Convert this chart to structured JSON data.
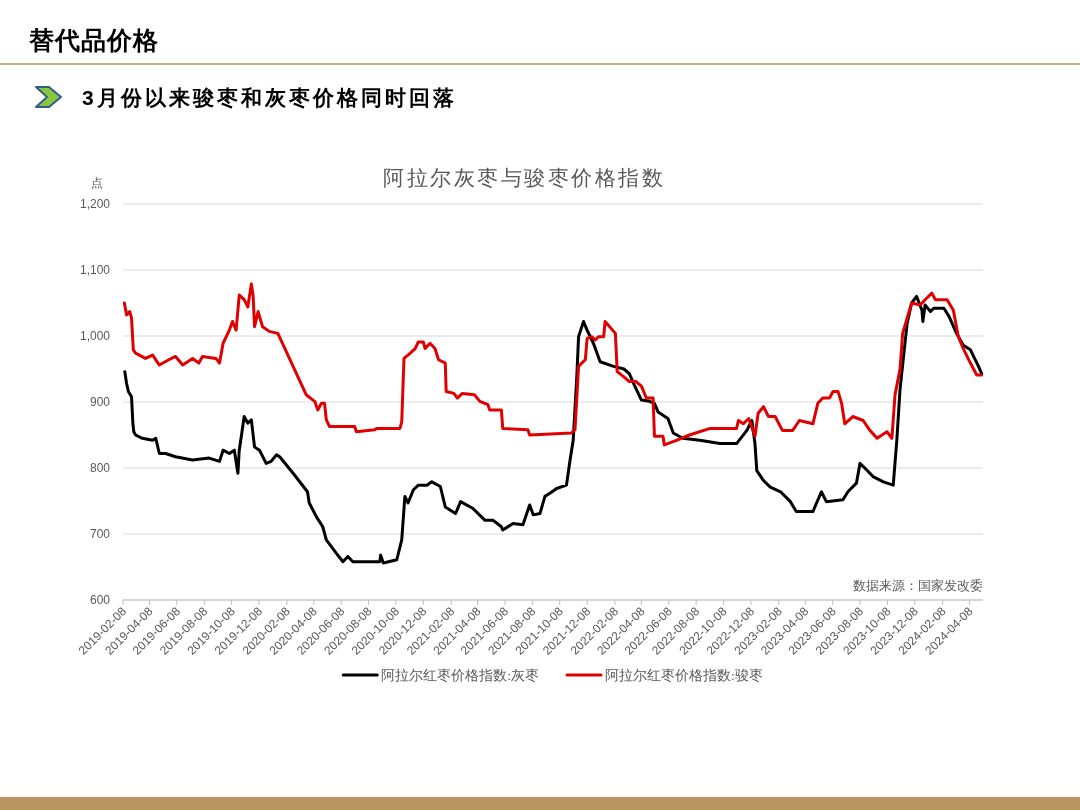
{
  "chart_data": {
    "type": "line",
    "title": "阿拉尔灰枣与骏枣价格指数",
    "subtitle": "3月份以来骏枣和灰枣价格同时回落",
    "ylabel": "点",
    "annotations": [
      "替代品价格",
      "数据来源：国家发改委"
    ],
    "xlim": [
      "2019-02-08",
      "2024-05-08"
    ],
    "xticks": [
      "2019-02-08",
      "2019-04-08",
      "2019-06-08",
      "2019-08-08",
      "2019-10-08",
      "2019-12-08",
      "2020-02-08",
      "2020-04-08",
      "2020-06-08",
      "2020-08-08",
      "2020-10-08",
      "2020-12-08",
      "2021-02-08",
      "2021-04-08",
      "2021-06-08",
      "2021-08-08",
      "2021-10-08",
      "2021-12-08",
      "2022-02-08",
      "2022-04-08",
      "2022-06-08",
      "2022-08-08",
      "2022-10-08",
      "2022-12-08",
      "2023-02-08",
      "2023-04-08",
      "2023-06-08",
      "2023-08-08",
      "2023-10-08",
      "2023-12-08",
      "2024-02-08",
      "2024-04-08"
    ],
    "ylim": [
      600,
      1200
    ],
    "yticks": [
      600,
      700,
      800,
      900,
      {
        "value": 1000,
        "label": "1,000"
      },
      {
        "value": 1100,
        "label": "1,100"
      },
      {
        "value": 1200,
        "label": "1,200"
      }
    ],
    "grid": "y",
    "legend": "bottom",
    "series": [
      {
        "name": "阿拉尔红枣价格指数:灰枣",
        "color": "#000000",
        "x": [
          "2019-02-12",
          "2019-02-16",
          "2019-02-20",
          "2019-02-27",
          "2019-03-02",
          "2019-03-04",
          "2019-03-08",
          "2019-03-23",
          "2019-04-15",
          "2019-04-22",
          "2019-04-30",
          "2019-05-14",
          "2019-06-05",
          "2019-07-13",
          "2019-08-19",
          "2019-09-11",
          "2019-09-19",
          "2019-10-03",
          "2019-10-14",
          "2019-10-22",
          "2019-10-25",
          "2019-10-29",
          "2019-11-05",
          "2019-11-13",
          "2019-11-21",
          "2019-11-28",
          "2019-12-09",
          "2019-12-24",
          "2020-01-04",
          "2020-01-16",
          "2020-01-23",
          "2020-02-22",
          "2020-03-25",
          "2020-03-29",
          "2020-04-14",
          "2020-04-28",
          "2020-05-06",
          "2020-05-28",
          "2020-06-12",
          "2020-06-23",
          "2020-07-04",
          "2020-07-26",
          "2020-09-02",
          "2020-09-04",
          "2020-09-10",
          "2020-10-10",
          "2020-10-21",
          "2020-10-28",
          "2020-11-04",
          "2020-11-16",
          "2020-11-27",
          "2020-12-16",
          "2020-12-27",
          "2021-01-15",
          "2021-01-26",
          "2021-02-18",
          "2021-03-01",
          "2021-03-28",
          "2021-04-24",
          "2021-05-12",
          "2021-05-31",
          "2021-06-03",
          "2021-06-26",
          "2021-07-18",
          "2021-08-02",
          "2021-08-10",
          "2021-08-25",
          "2021-09-05",
          "2021-09-17",
          "2021-10-01",
          "2021-10-23",
          "2021-10-31",
          "2021-11-07",
          "2021-11-15",
          "2021-11-19",
          "2021-11-30",
          "2021-12-08",
          "2021-12-22",
          "2022-01-06",
          "2022-02-05",
          "2022-02-28",
          "2022-03-12",
          "2022-03-23",
          "2022-04-08",
          "2022-04-26",
          "2022-05-07",
          "2022-05-15",
          "2022-06-06",
          "2022-06-18",
          "2022-07-09",
          "2022-08-16",
          "2022-09-30",
          "2022-11-06",
          "2022-11-29",
          "2022-12-10",
          "2022-12-17",
          "2022-12-21",
          "2023-01-05",
          "2023-01-20",
          "2023-02-12",
          "2023-03-06",
          "2023-03-19",
          "2023-04-25",
          "2023-05-14",
          "2023-05-25",
          "2023-07-01",
          "2023-07-12",
          "2023-07-31",
          "2023-08-08",
          "2023-08-23",
          "2023-09-06",
          "2023-09-29",
          "2023-10-21",
          "2023-10-29",
          "2023-11-05",
          "2023-11-13",
          "2023-11-21",
          "2023-12-01",
          "2023-12-12",
          "2023-12-24",
          "2023-12-26",
          "2023-12-31",
          "2024-01-12",
          "2024-01-19",
          "2024-02-11",
          "2024-02-22",
          "2024-03-10",
          "2024-03-25",
          "2024-04-10",
          "2024-04-17",
          "2024-04-28",
          "2024-05-05"
        ],
        "values": [
          946,
          928,
          916,
          908,
          868,
          855,
          850,
          845,
          842,
          845,
          822,
          822,
          817,
          812,
          815,
          810,
          827,
          822,
          827,
          792,
          827,
          845,
          878,
          868,
          873,
          832,
          827,
          807,
          810,
          820,
          817,
          792,
          764,
          747,
          726,
          711,
          691,
          671,
          658,
          666,
          658,
          658,
          658,
          668,
          656,
          661,
          691,
          757,
          747,
          767,
          774,
          774,
          779,
          772,
          741,
          731,
          749,
          739,
          721,
          721,
          711,
          706,
          716,
          714,
          744,
          729,
          731,
          757,
          762,
          769,
          774,
          812,
          842,
          938,
          999,
          1022,
          1009,
          989,
          961,
          954,
          950,
          943,
          926,
          903,
          901,
          898,
          885,
          875,
          853,
          845,
          842,
          837,
          837,
          857,
          872,
          837,
          796,
          781,
          771,
          764,
          749,
          734,
          734,
          764,
          749,
          752,
          764,
          777,
          807,
          797,
          787,
          779,
          774,
          842,
          918,
          969,
          1019,
          1050,
          1060,
          1039,
          1022,
          1047,
          1037,
          1042,
          1042,
          1030,
          1004,
          986,
          979,
          969,
          954,
          943
        ]
      },
      {
        "name": "阿拉尔红枣价格指数:骏枣",
        "color": "#e00000",
        "x": [
          "2019-02-11",
          "2019-02-16",
          "2019-02-23",
          "2019-02-27",
          "2019-03-03",
          "2019-03-08",
          "2019-03-30",
          "2019-04-15",
          "2019-04-30",
          "2019-05-21",
          "2019-06-05",
          "2019-06-21",
          "2019-07-13",
          "2019-07-27",
          "2019-08-04",
          "2019-09-03",
          "2019-09-11",
          "2019-09-19",
          "2019-10-03",
          "2019-10-10",
          "2019-10-18",
          "2019-10-25",
          "2019-11-05",
          "2019-11-13",
          "2019-11-21",
          "2019-11-25",
          "2019-11-28",
          "2019-12-06",
          "2019-12-16",
          "2019-12-31",
          "2020-01-19",
          "2020-02-22",
          "2020-03-22",
          "2020-04-10",
          "2020-04-17",
          "2020-04-25",
          "2020-05-02",
          "2020-05-06",
          "2020-05-13",
          "2020-07-08",
          "2020-07-12",
          "2020-08-22",
          "2020-08-26",
          "2020-10-17",
          "2020-10-21",
          "2020-10-26",
          "2020-11-09",
          "2020-11-20",
          "2020-11-27",
          "2020-12-08",
          "2020-12-12",
          "2020-12-23",
          "2021-01-03",
          "2021-01-11",
          "2021-01-26",
          "2021-01-28",
          "2021-02-14",
          "2021-02-22",
          "2021-03-05",
          "2021-04-01",
          "2021-04-13",
          "2021-05-01",
          "2021-05-05",
          "2021-05-31",
          "2021-06-03",
          "2021-07-29",
          "2021-08-02",
          "2021-11-03",
          "2021-11-11",
          "2021-11-19",
          "2021-11-26",
          "2021-12-04",
          "2021-12-08",
          "2021-12-18",
          "2021-12-26",
          "2022-01-02",
          "2022-01-14",
          "2022-01-17",
          "2022-02-09",
          "2022-02-13",
          "2022-02-28",
          "2022-03-12",
          "2022-03-27",
          "2022-04-08",
          "2022-04-19",
          "2022-05-04",
          "2022-05-07",
          "2022-05-26",
          "2022-05-29",
          "2022-06-25",
          "2022-07-24",
          "2022-09-08",
          "2022-11-06",
          "2022-11-10",
          "2022-11-21",
          "2022-12-03",
          "2022-12-17",
          "2022-12-24",
          "2023-01-05",
          "2023-01-16",
          "2023-01-31",
          "2023-02-16",
          "2023-03-11",
          "2023-03-26",
          "2023-04-25",
          "2023-05-06",
          "2023-05-17",
          "2023-06-01",
          "2023-06-09",
          "2023-06-20",
          "2023-06-28",
          "2023-07-05",
          "2023-07-23",
          "2023-08-15",
          "2023-08-30",
          "2023-09-15",
          "2023-10-07",
          "2023-10-18",
          "2023-10-25",
          "2023-11-05",
          "2023-11-11",
          "2023-12-01",
          "2023-12-20",
          "2023-12-31",
          "2024-01-15",
          "2024-01-23",
          "2024-02-18",
          "2024-03-03",
          "2024-03-14",
          "2024-03-25",
          "2024-04-10",
          "2024-04-24",
          "2024-05-05"
        ],
        "values": [
          1050,
          1032,
          1037,
          1027,
          979,
          974,
          966,
          971,
          956,
          964,
          969,
          956,
          966,
          959,
          969,
          966,
          959,
          989,
          1009,
          1022,
          1009,
          1062,
          1055,
          1044,
          1079,
          1060,
          1014,
          1037,
          1014,
          1007,
          1004,
          954,
          911,
          901,
          888,
          898,
          898,
          873,
          863,
          863,
          855,
          858,
          860,
          860,
          870,
          966,
          974,
          981,
          991,
          991,
          981,
          989,
          981,
          964,
          959,
          916,
          913,
          906,
          913,
          911,
          901,
          896,
          888,
          888,
          860,
          858,
          850,
          853,
          858,
          954,
          959,
          964,
          996,
          999,
          994,
          999,
          999,
          1022,
          1004,
          946,
          938,
          931,
          931,
          924,
          906,
          906,
          848,
          848,
          835,
          842,
          850,
          860,
          860,
          872,
          867,
          875,
          848,
          883,
          893,
          878,
          878,
          857,
          857,
          872,
          867,
          898,
          906,
          906,
          916,
          916,
          898,
          867,
          878,
          872,
          857,
          845,
          855,
          845,
          911,
          949,
          1004,
          1050,
          1047,
          1055,
          1065,
          1055,
          1055,
          1039,
          999,
          981,
          959,
          941,
          941
        ]
      }
    ]
  }
}
